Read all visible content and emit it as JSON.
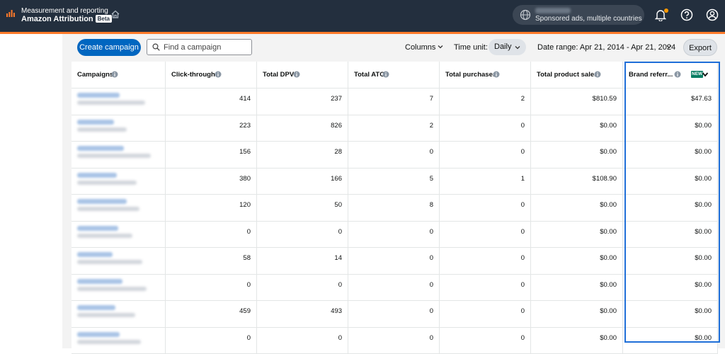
{
  "header": {
    "title": "Measurement and reporting",
    "subtitle": "Amazon Attribution",
    "badge": "Beta",
    "account_text": "Sponsored ads, multiple countries",
    "icons": [
      "bar-chart-icon",
      "home-icon",
      "globe-icon",
      "bell-icon",
      "help-icon",
      "user-icon"
    ],
    "accent_color": "#ff7a2a",
    "bar_color": "#232f3e"
  },
  "toolbar": {
    "create_label": "Create campaign",
    "search_placeholder": "Find a campaign",
    "columns_label": "Columns",
    "time_unit_label": "Time unit:",
    "time_unit_value": "Daily",
    "date_range": "Date range: Apr 21, 2014 - Apr 21, 2024",
    "export_label": "Export",
    "primary_color": "#0066c0"
  },
  "table": {
    "columns": [
      "Campaigns",
      "Click-throughs",
      "Total DPV",
      "Total ATC",
      "Total purchases",
      "Total product sales",
      "Brand referr..."
    ],
    "new_badge": "NEW",
    "rows": [
      {
        "click": "414",
        "dpv": "237",
        "atc": "7",
        "purchases": "2",
        "sales": "$810.59",
        "brand": "$47.63"
      },
      {
        "click": "223",
        "dpv": "826",
        "atc": "2",
        "purchases": "0",
        "sales": "$0.00",
        "brand": "$0.00"
      },
      {
        "click": "156",
        "dpv": "28",
        "atc": "0",
        "purchases": "0",
        "sales": "$0.00",
        "brand": "$0.00"
      },
      {
        "click": "380",
        "dpv": "166",
        "atc": "5",
        "purchases": "1",
        "sales": "$108.90",
        "brand": "$0.00"
      },
      {
        "click": "120",
        "dpv": "50",
        "atc": "8",
        "purchases": "0",
        "sales": "$0.00",
        "brand": "$0.00"
      },
      {
        "click": "0",
        "dpv": "0",
        "atc": "0",
        "purchases": "0",
        "sales": "$0.00",
        "brand": "$0.00"
      },
      {
        "click": "58",
        "dpv": "14",
        "atc": "0",
        "purchases": "0",
        "sales": "$0.00",
        "brand": "$0.00"
      },
      {
        "click": "0",
        "dpv": "0",
        "atc": "0",
        "purchases": "0",
        "sales": "$0.00",
        "brand": "$0.00"
      },
      {
        "click": "459",
        "dpv": "493",
        "atc": "0",
        "purchases": "0",
        "sales": "$0.00",
        "brand": "$0.00"
      },
      {
        "click": "0",
        "dpv": "0",
        "atc": "0",
        "purchases": "0",
        "sales": "$0.00",
        "brand": "$0.00"
      }
    ],
    "highlight_color": "#1f6fd8"
  }
}
